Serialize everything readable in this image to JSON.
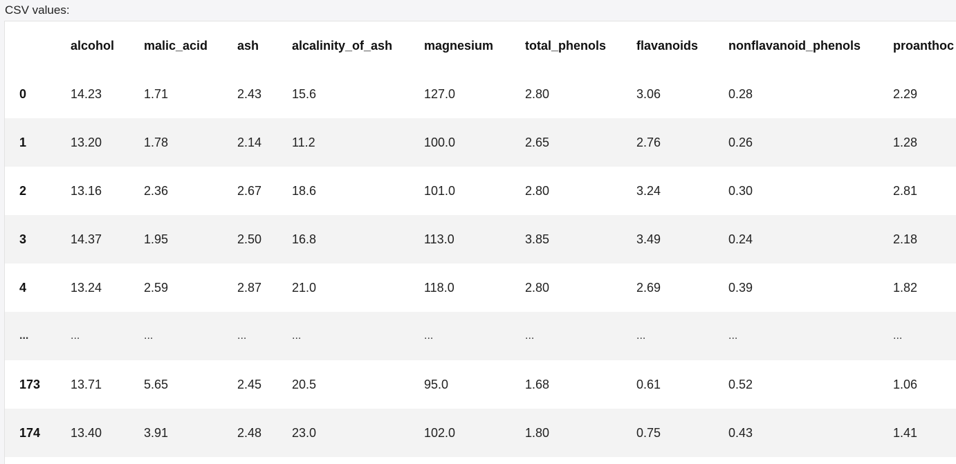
{
  "caption": "CSV values:",
  "columns": [
    "alcohol",
    "malic_acid",
    "ash",
    "alcalinity_of_ash",
    "magnesium",
    "total_phenols",
    "flavanoids",
    "nonflavanoid_phenols",
    "proanthoc"
  ],
  "rows": [
    {
      "index": "0",
      "cells": [
        "14.23",
        "1.71",
        "2.43",
        "15.6",
        "127.0",
        "2.80",
        "3.06",
        "0.28",
        "2.29"
      ]
    },
    {
      "index": "1",
      "cells": [
        "13.20",
        "1.78",
        "2.14",
        "11.2",
        "100.0",
        "2.65",
        "2.76",
        "0.26",
        "1.28"
      ]
    },
    {
      "index": "2",
      "cells": [
        "13.16",
        "2.36",
        "2.67",
        "18.6",
        "101.0",
        "2.80",
        "3.24",
        "0.30",
        "2.81"
      ]
    },
    {
      "index": "3",
      "cells": [
        "14.37",
        "1.95",
        "2.50",
        "16.8",
        "113.0",
        "3.85",
        "3.49",
        "0.24",
        "2.18"
      ]
    },
    {
      "index": "4",
      "cells": [
        "13.24",
        "2.59",
        "2.87",
        "21.0",
        "118.0",
        "2.80",
        "2.69",
        "0.39",
        "1.82"
      ]
    },
    {
      "index": "...",
      "cells": [
        "...",
        "...",
        "...",
        "...",
        "...",
        "...",
        "...",
        "...",
        "..."
      ]
    },
    {
      "index": "173",
      "cells": [
        "13.71",
        "5.65",
        "2.45",
        "20.5",
        "95.0",
        "1.68",
        "0.61",
        "0.52",
        "1.06"
      ]
    },
    {
      "index": "174",
      "cells": [
        "13.40",
        "3.91",
        "2.48",
        "23.0",
        "102.0",
        "1.80",
        "0.75",
        "0.43",
        "1.41"
      ]
    }
  ]
}
